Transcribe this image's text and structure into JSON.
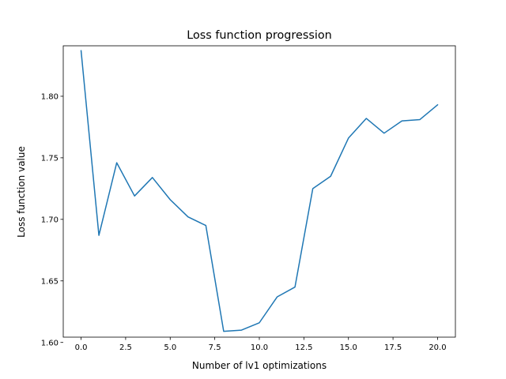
{
  "chart_data": {
    "type": "line",
    "title": "Loss function progression",
    "xlabel": "Number of lv1 optimizations",
    "ylabel": "Loss function value",
    "xlim": [
      -1.0,
      21.0
    ],
    "ylim": [
      1.6043,
      1.841
    ],
    "xticks": [
      0.0,
      2.5,
      5.0,
      7.5,
      10.0,
      12.5,
      15.0,
      17.5,
      20.0
    ],
    "xtick_labels": [
      "0.0",
      "2.5",
      "5.0",
      "7.5",
      "10.0",
      "12.5",
      "15.0",
      "17.5",
      "20.0"
    ],
    "yticks": [
      1.6,
      1.65,
      1.7,
      1.75,
      1.8
    ],
    "ytick_labels": [
      "1.60",
      "1.65",
      "1.70",
      "1.75",
      "1.80"
    ],
    "grid": false,
    "series": [
      {
        "color": "#1f77b4",
        "x": [
          0,
          1,
          2,
          3,
          4,
          5,
          6,
          7,
          8,
          9,
          10,
          11,
          12,
          13,
          14,
          15,
          16,
          17,
          18,
          19,
          20
        ],
        "y": [
          1.837,
          1.687,
          1.746,
          1.719,
          1.734,
          1.716,
          1.702,
          1.695,
          1.609,
          1.61,
          1.616,
          1.637,
          1.645,
          1.725,
          1.735,
          1.766,
          1.782,
          1.77,
          1.78,
          1.781,
          1.793
        ]
      }
    ]
  }
}
